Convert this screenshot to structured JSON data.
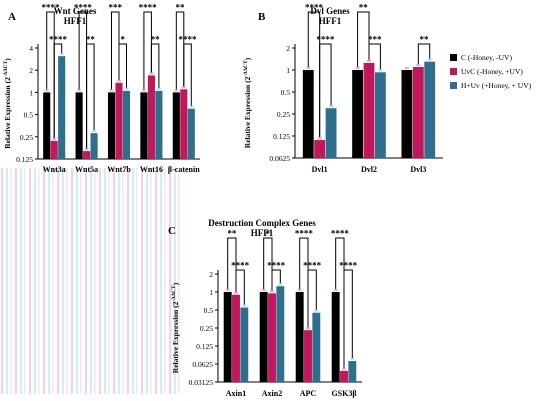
{
  "colors": {
    "ctrl": "#000000",
    "uvc": "#c2185b",
    "huv": "#2e6f8e",
    "stripe_a": "#f2a6d8",
    "stripe_b": "#9fe6f0"
  },
  "legend": {
    "entries": [
      {
        "label": "C (-Honey, -UV)",
        "color": "#000000"
      },
      {
        "label": "UvC (-Honey, +UV)",
        "color": "#c2185b"
      },
      {
        "label": "H+Uv (+Honey, + UV)",
        "color": "#2e6f8e"
      }
    ]
  },
  "chart_data": [
    {
      "panel": "A",
      "type": "bar",
      "title": "Wnt Genes",
      "subtitle": "HFF1",
      "ylabel": "Relative Expression (2^-ΔΔCT)",
      "log_scale": true,
      "log_base": 2,
      "ylim": [
        0.125,
        4
      ],
      "yticks": [
        0.125,
        0.25,
        0.5,
        1,
        2,
        4
      ],
      "ytick_labels": [
        "0.125",
        "0.25",
        "0.5",
        "1",
        "2",
        "4"
      ],
      "categories": [
        "Wnt3a",
        "Wnt5a",
        "Wnt7b",
        "Wnt16",
        "β-catenin"
      ],
      "series": [
        {
          "name": "C (-Honey, -UV)",
          "values": [
            1,
            1,
            1,
            1,
            1
          ]
        },
        {
          "name": "UvC (-Honey, +UV)",
          "values": [
            0.22,
            0.16,
            1.35,
            1.7,
            1.1
          ]
        },
        {
          "name": "H+Uv (+Honey, + UV)",
          "values": [
            3.1,
            0.28,
            1.05,
            1.05,
            0.6
          ]
        }
      ],
      "significance": [
        {
          "cat": 0,
          "from": 0,
          "to": 1,
          "label": "****"
        },
        {
          "cat": 0,
          "from": 1,
          "to": 2,
          "label": "****"
        },
        {
          "cat": 1,
          "from": 0,
          "to": 1,
          "label": "****"
        },
        {
          "cat": 1,
          "from": 1,
          "to": 2,
          "label": "**"
        },
        {
          "cat": 2,
          "from": 0,
          "to": 1,
          "label": "***"
        },
        {
          "cat": 2,
          "from": 1,
          "to": 2,
          "label": "*"
        },
        {
          "cat": 3,
          "from": 0,
          "to": 1,
          "label": "****"
        },
        {
          "cat": 3,
          "from": 1,
          "to": 2,
          "label": "**"
        },
        {
          "cat": 4,
          "from": 0,
          "to": 1,
          "label": "**"
        },
        {
          "cat": 4,
          "from": 1,
          "to": 2,
          "label": "****"
        }
      ]
    },
    {
      "panel": "B",
      "type": "bar",
      "title": "Dvl Genes",
      "subtitle": "HFF1",
      "ylabel": "Relative Expression (2^-ΔΔCT)",
      "log_scale": true,
      "log_base": 2,
      "ylim": [
        0.0625,
        2
      ],
      "yticks": [
        0.0625,
        0.125,
        0.25,
        0.5,
        1,
        2
      ],
      "ytick_labels": [
        "0.0625",
        "0.125",
        "0.25",
        "0.5",
        "1",
        "2"
      ],
      "categories": [
        "Dvl1",
        "Dvl2",
        "Dvl3"
      ],
      "series": [
        {
          "name": "C (-Honey, -UV)",
          "values": [
            1,
            1,
            1
          ]
        },
        {
          "name": "UvC (-Honey, +UV)",
          "values": [
            0.11,
            1.25,
            1.1
          ]
        },
        {
          "name": "H+Uv (+Honey, + UV)",
          "values": [
            0.3,
            0.93,
            1.3
          ]
        }
      ],
      "significance": [
        {
          "cat": 0,
          "from": 0,
          "to": 1,
          "label": "****"
        },
        {
          "cat": 0,
          "from": 1,
          "to": 2,
          "label": "****"
        },
        {
          "cat": 1,
          "from": 0,
          "to": 1,
          "label": "**"
        },
        {
          "cat": 1,
          "from": 1,
          "to": 2,
          "label": "***"
        },
        {
          "cat": 2,
          "from": 1,
          "to": 2,
          "label": "**"
        }
      ]
    },
    {
      "panel": "C",
      "type": "bar",
      "title": "Destruction Complex Genes",
      "subtitle": "HFF1",
      "ylabel": "Relative Expression (2^-ΔΔCT)",
      "log_scale": true,
      "log_base": 2,
      "ylim": [
        0.03125,
        2
      ],
      "yticks": [
        0.03125,
        0.0625,
        0.125,
        0.25,
        0.5,
        1,
        2
      ],
      "ytick_labels": [
        "0.03125",
        "0.0625",
        "0.125",
        "0.25",
        "0.5",
        "1",
        "2"
      ],
      "categories": [
        "Axin1",
        "Axin2",
        "APC",
        "GSK3β"
      ],
      "series": [
        {
          "name": "C (-Honey, -UV)",
          "values": [
            1,
            1,
            1,
            1
          ]
        },
        {
          "name": "UvC (-Honey, +UV)",
          "values": [
            0.9,
            0.95,
            0.23,
            0.048
          ]
        },
        {
          "name": "H+Uv (+Honey, + UV)",
          "values": [
            0.55,
            1.25,
            0.45,
            0.07
          ]
        }
      ],
      "significance": [
        {
          "cat": 0,
          "from": 0,
          "to": 1,
          "label": "**"
        },
        {
          "cat": 0,
          "from": 1,
          "to": 2,
          "label": "****"
        },
        {
          "cat": 1,
          "from": 0,
          "to": 1,
          "label": "*"
        },
        {
          "cat": 1,
          "from": 1,
          "to": 2,
          "label": "****"
        },
        {
          "cat": 2,
          "from": 0,
          "to": 1,
          "label": "****"
        },
        {
          "cat": 2,
          "from": 1,
          "to": 2,
          "label": "****"
        },
        {
          "cat": 3,
          "from": 0,
          "to": 1,
          "label": "****"
        },
        {
          "cat": 3,
          "from": 1,
          "to": 2,
          "label": "****"
        }
      ]
    }
  ]
}
